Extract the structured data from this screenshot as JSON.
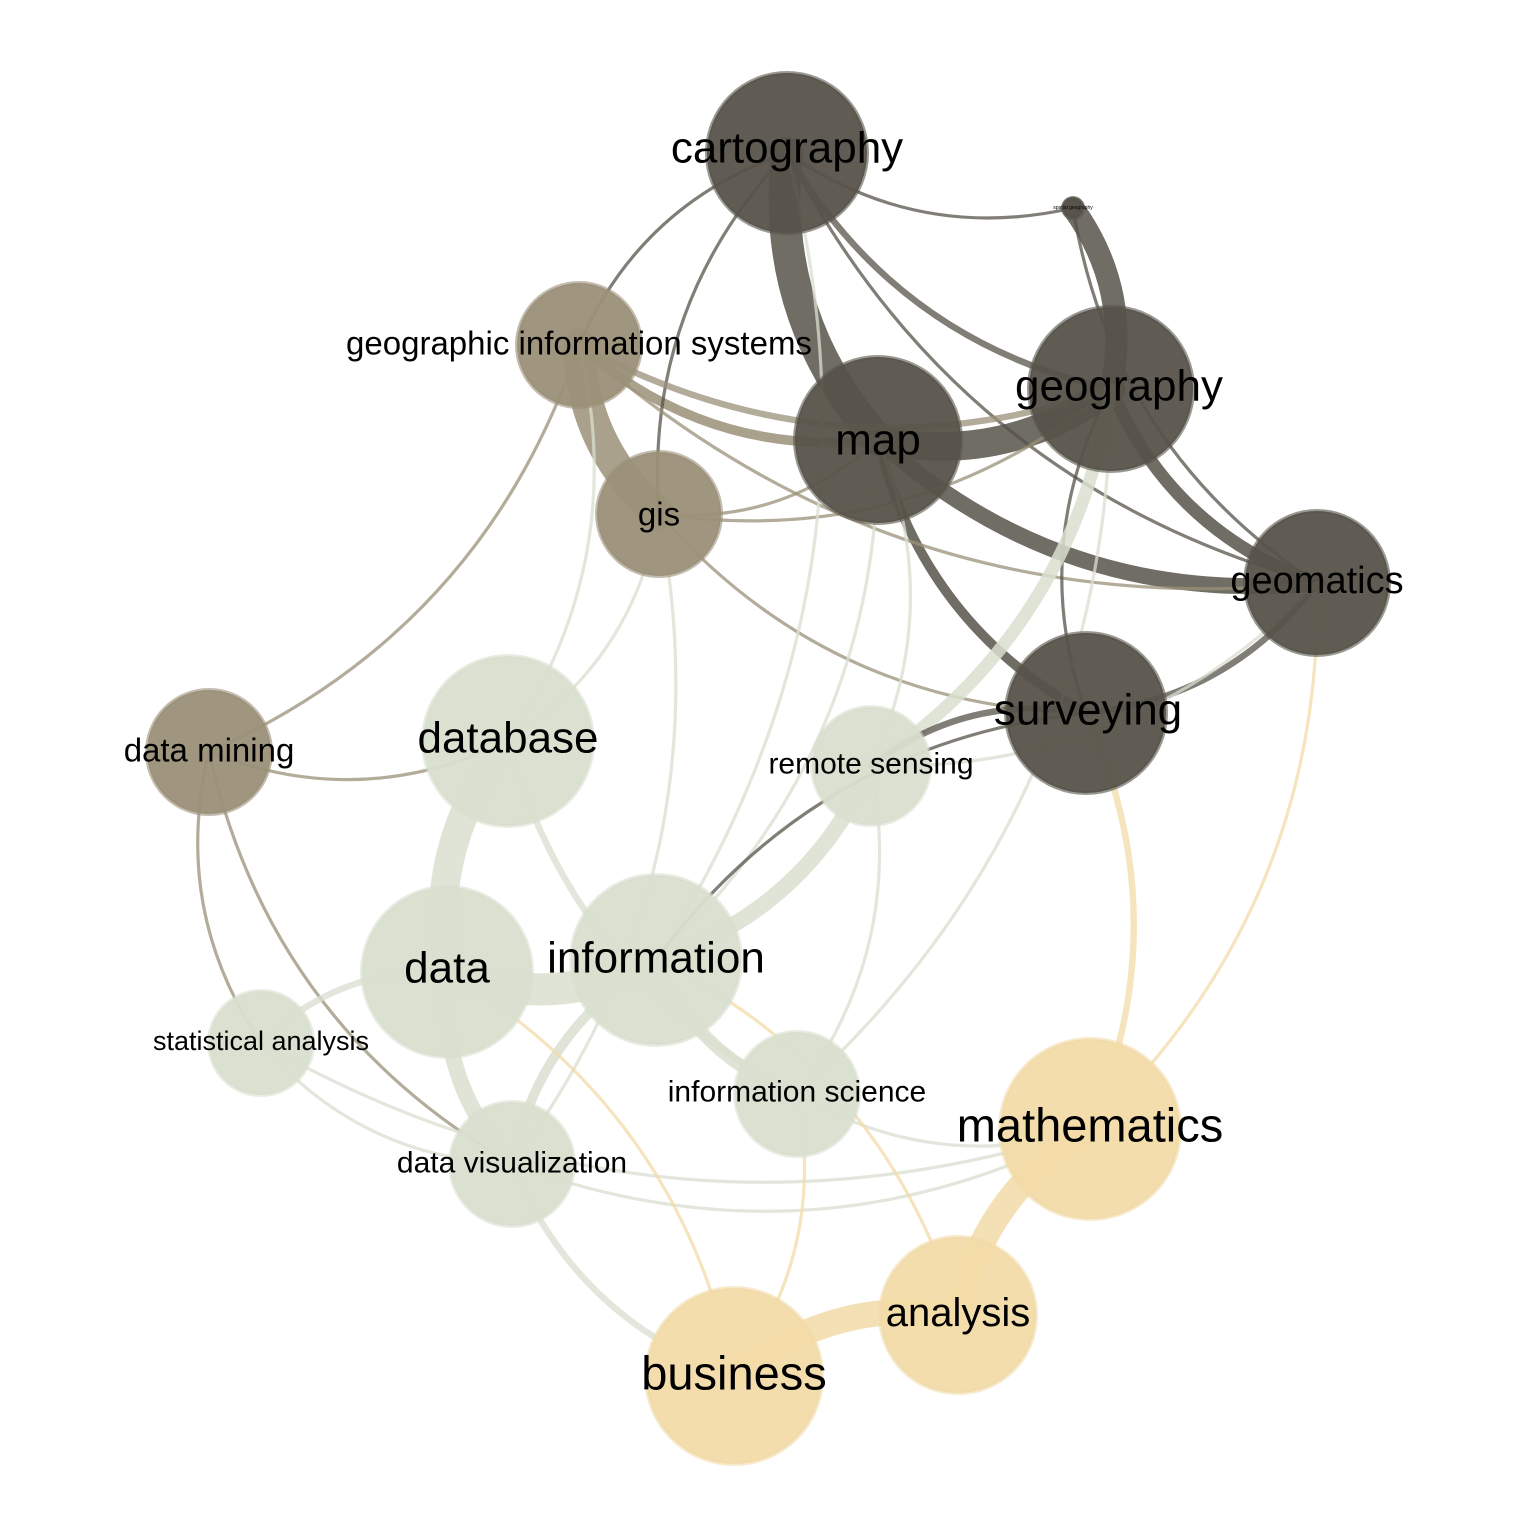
{
  "colors": {
    "background": "#ffffff",
    "cluster_geo_dark": "#57534a",
    "cluster_gis": "#9b9078",
    "cluster_data": "#d9dfcf",
    "cluster_math": "#f2dba8"
  },
  "nodes": [
    {
      "id": "cartography",
      "label": "cartography",
      "cluster": "geo_dark"
    },
    {
      "id": "spatial-geography",
      "label": "spatial geography",
      "cluster": "geo_dark"
    },
    {
      "id": "geographic-information-systems",
      "label": "geographic information systems",
      "cluster": "gis"
    },
    {
      "id": "map",
      "label": "map",
      "cluster": "geo_dark"
    },
    {
      "id": "geography",
      "label": "geography",
      "cluster": "geo_dark"
    },
    {
      "id": "gis",
      "label": "gis",
      "cluster": "gis"
    },
    {
      "id": "geomatics",
      "label": "geomatics",
      "cluster": "geo_dark"
    },
    {
      "id": "surveying",
      "label": "surveying",
      "cluster": "geo_dark"
    },
    {
      "id": "data-mining",
      "label": "data mining",
      "cluster": "gis"
    },
    {
      "id": "database",
      "label": "database",
      "cluster": "data"
    },
    {
      "id": "remote-sensing",
      "label": "remote sensing",
      "cluster": "data"
    },
    {
      "id": "data",
      "label": "data",
      "cluster": "data"
    },
    {
      "id": "information",
      "label": "information",
      "cluster": "data"
    },
    {
      "id": "statistical-analysis",
      "label": "statistical analysis",
      "cluster": "data"
    },
    {
      "id": "information-science",
      "label": "information science",
      "cluster": "data"
    },
    {
      "id": "data-visualization",
      "label": "data visualization",
      "cluster": "data"
    },
    {
      "id": "mathematics",
      "label": "mathematics",
      "cluster": "math"
    },
    {
      "id": "analysis",
      "label": "analysis",
      "cluster": "math"
    },
    {
      "id": "business",
      "label": "business",
      "cluster": "math"
    }
  ],
  "edges": [
    {
      "source": "cartography",
      "target": "map",
      "weight": 10
    },
    {
      "source": "map",
      "target": "geography",
      "weight": 9
    },
    {
      "source": "geography",
      "target": "spatial-geography",
      "weight": 7
    },
    {
      "source": "geographic-information-systems",
      "target": "gis",
      "weight": 10
    },
    {
      "source": "map",
      "target": "geomatics",
      "weight": 5
    },
    {
      "source": "geography",
      "target": "geomatics",
      "weight": 4
    },
    {
      "source": "map",
      "target": "surveying",
      "weight": 3
    },
    {
      "source": "geographic-information-systems",
      "target": "map",
      "weight": 3
    },
    {
      "source": "surveying",
      "target": "geomatics",
      "weight": 2
    },
    {
      "source": "cartography",
      "target": "geography",
      "weight": 2
    },
    {
      "source": "cartography",
      "target": "geomatics",
      "weight": 1
    },
    {
      "source": "cartography",
      "target": "spatial-geography",
      "weight": 1
    },
    {
      "source": "cartography",
      "target": "geographic-information-systems",
      "weight": 1
    },
    {
      "source": "cartography",
      "target": "gis",
      "weight": 1
    },
    {
      "source": "geographic-information-systems",
      "target": "geography",
      "weight": 2
    },
    {
      "source": "geographic-information-systems",
      "target": "geomatics",
      "weight": 1
    },
    {
      "source": "spatial-geography",
      "target": "geomatics",
      "weight": 1
    },
    {
      "source": "geography",
      "target": "surveying",
      "weight": 1
    },
    {
      "source": "gis",
      "target": "map",
      "weight": 1
    },
    {
      "source": "gis",
      "target": "surveying",
      "weight": 1
    },
    {
      "source": "gis",
      "target": "geography",
      "weight": 1
    },
    {
      "source": "remote-sensing",
      "target": "geography",
      "weight": 4
    },
    {
      "source": "remote-sensing",
      "target": "geomatics",
      "weight": 1
    },
    {
      "source": "remote-sensing",
      "target": "map",
      "weight": 1
    },
    {
      "source": "data-mining",
      "target": "geographic-information-systems",
      "weight": 1
    },
    {
      "source": "data-mining",
      "target": "database",
      "weight": 1
    },
    {
      "source": "data-mining",
      "target": "data-visualization",
      "weight": 1
    },
    {
      "source": "data-mining",
      "target": "statistical-analysis",
      "weight": 1
    },
    {
      "source": "database",
      "target": "data",
      "weight": 9
    },
    {
      "source": "database",
      "target": "geographic-information-systems",
      "weight": 1
    },
    {
      "source": "database",
      "target": "information-science",
      "weight": 2
    },
    {
      "source": "database",
      "target": "gis",
      "weight": 1
    },
    {
      "source": "data",
      "target": "information",
      "weight": 10
    },
    {
      "source": "data",
      "target": "data-visualization",
      "weight": 5
    },
    {
      "source": "data",
      "target": "statistical-analysis",
      "weight": 2
    },
    {
      "source": "information",
      "target": "remote-sensing",
      "weight": 5
    },
    {
      "source": "information",
      "target": "information-science",
      "weight": 4
    },
    {
      "source": "information",
      "target": "data-visualization",
      "weight": 3
    },
    {
      "source": "information",
      "target": "map",
      "weight": 1
    },
    {
      "source": "information",
      "target": "cartography",
      "weight": 1
    },
    {
      "source": "information-science",
      "target": "remote-sensing",
      "weight": 1
    },
    {
      "source": "information-science",
      "target": "geography",
      "weight": 1
    },
    {
      "source": "information-science",
      "target": "mathematics",
      "weight": 1
    },
    {
      "source": "statistical-analysis",
      "target": "data-visualization",
      "weight": 1
    },
    {
      "source": "statistical-analysis",
      "target": "mathematics",
      "weight": 1
    },
    {
      "source": "data-visualization",
      "target": "business",
      "weight": 2
    },
    {
      "source": "data-visualization",
      "target": "mathematics",
      "weight": 1
    },
    {
      "source": "data-visualization",
      "target": "gis",
      "weight": 1
    },
    {
      "source": "mathematics",
      "target": "analysis",
      "weight": 8
    },
    {
      "source": "analysis",
      "target": "business",
      "weight": 8
    },
    {
      "source": "mathematics",
      "target": "surveying",
      "weight": 2
    },
    {
      "source": "mathematics",
      "target": "geomatics",
      "weight": 1
    },
    {
      "source": "analysis",
      "target": "information",
      "weight": 1
    },
    {
      "source": "business",
      "target": "data",
      "weight": 1
    },
    {
      "source": "business",
      "target": "information-science",
      "weight": 1
    },
    {
      "source": "surveying",
      "target": "remote-sensing",
      "weight": 2
    },
    {
      "source": "surveying",
      "target": "information",
      "weight": 1
    }
  ]
}
